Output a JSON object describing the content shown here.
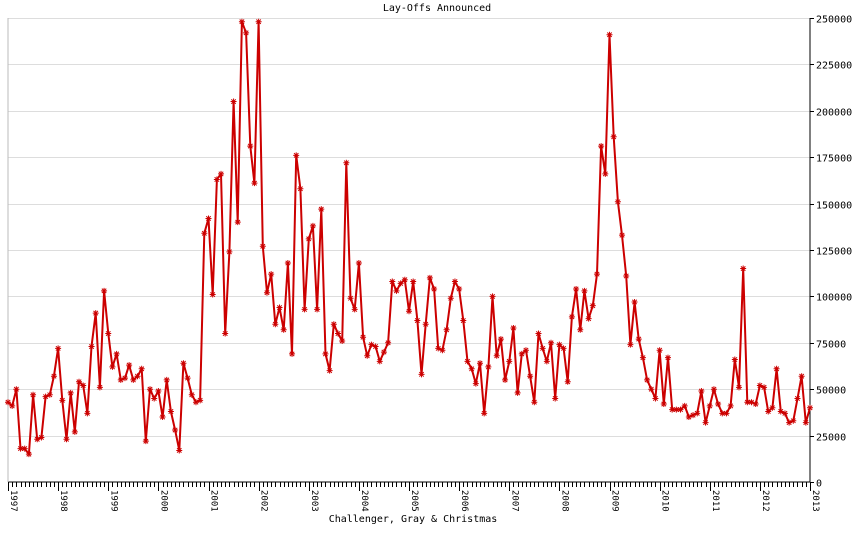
{
  "chart_data": {
    "type": "line",
    "title": "Lay-Offs Announced",
    "source": "Challenger, Gray & Christmas",
    "xlabel": "",
    "ylabel": "",
    "ylim": [
      0,
      250000
    ],
    "y_ticks": [
      0,
      25000,
      50000,
      75000,
      100000,
      125000,
      150000,
      175000,
      200000,
      225000,
      250000
    ],
    "y_tick_labels": [
      "0",
      "25000",
      "50000",
      "75000",
      "100000",
      "125000",
      "150000",
      "175000",
      "200000",
      "225000",
      "250000"
    ],
    "x_start": "1997-01",
    "x_end": "2013-01",
    "x_year_labels": [
      "1997",
      "1998",
      "1999",
      "2000",
      "2001",
      "2002",
      "2003",
      "2004",
      "2005",
      "2006",
      "2007",
      "2008",
      "2009",
      "2010",
      "2011",
      "2012",
      "2013"
    ],
    "grid": true,
    "legend": "none",
    "marker": "asterisk",
    "line_color": "#cc0000",
    "series": [
      {
        "start": "1997-01",
        "values": [
          43000,
          41000,
          50000,
          18000,
          18000,
          15000,
          47000,
          23000,
          24000,
          46000,
          47000,
          57000,
          72000,
          44000,
          23000,
          48000,
          27000,
          54000,
          52000,
          37000,
          73000,
          91000,
          51000,
          103000,
          80000,
          62000,
          69000,
          55000,
          56000,
          63000,
          55000,
          57000,
          61000,
          22000,
          50000,
          45000,
          49000,
          35000,
          55000,
          38000,
          28000,
          17000,
          64000,
          56000,
          47000,
          43000,
          44000,
          134000,
          142000,
          101000,
          163000,
          166000,
          80000,
          124000,
          205000,
          140000,
          248000,
          242000,
          181000,
          161000,
          248000,
          127000,
          102000,
          112000,
          85000,
          94000,
          82000,
          118000,
          69000,
          176000,
          158000,
          93000,
          131000,
          138000,
          93000,
          147000,
          69000,
          60000,
          85000,
          80000,
          76000,
          172000,
          99000,
          93000,
          118000,
          78000,
          68000,
          74000,
          73000,
          65000,
          70000,
          75000,
          108000,
          103000,
          107000,
          109000,
          92000,
          108000,
          87000,
          58000,
          85000,
          110000,
          104000,
          72000,
          71000,
          82000,
          99000,
          108000,
          104000,
          87000,
          65000,
          61000,
          53000,
          64000,
          37000,
          62000,
          100000,
          68000,
          77000,
          55000,
          65000,
          83000,
          48000,
          69000,
          71000,
          57000,
          43000,
          80000,
          72000,
          65000,
          75000,
          45000,
          74000,
          72000,
          54000,
          89000,
          104000,
          82000,
          103000,
          88000,
          95000,
          112000,
          181000,
          166000,
          241000,
          186000,
          151000,
          133000,
          111000,
          74000,
          97000,
          77000,
          67000,
          55000,
          50000,
          45000,
          71000,
          42000,
          67000,
          39000,
          39000,
          39000,
          41000,
          35000,
          36000,
          37000,
          49000,
          32000,
          41000,
          50000,
          42000,
          37000,
          37000,
          41000,
          66000,
          51000,
          115000,
          43000,
          43000,
          42000,
          52000,
          51000,
          38000,
          40000,
          61000,
          38000,
          37000,
          32000,
          33000,
          45000,
          57000,
          32000,
          40000
        ]
      }
    ]
  }
}
